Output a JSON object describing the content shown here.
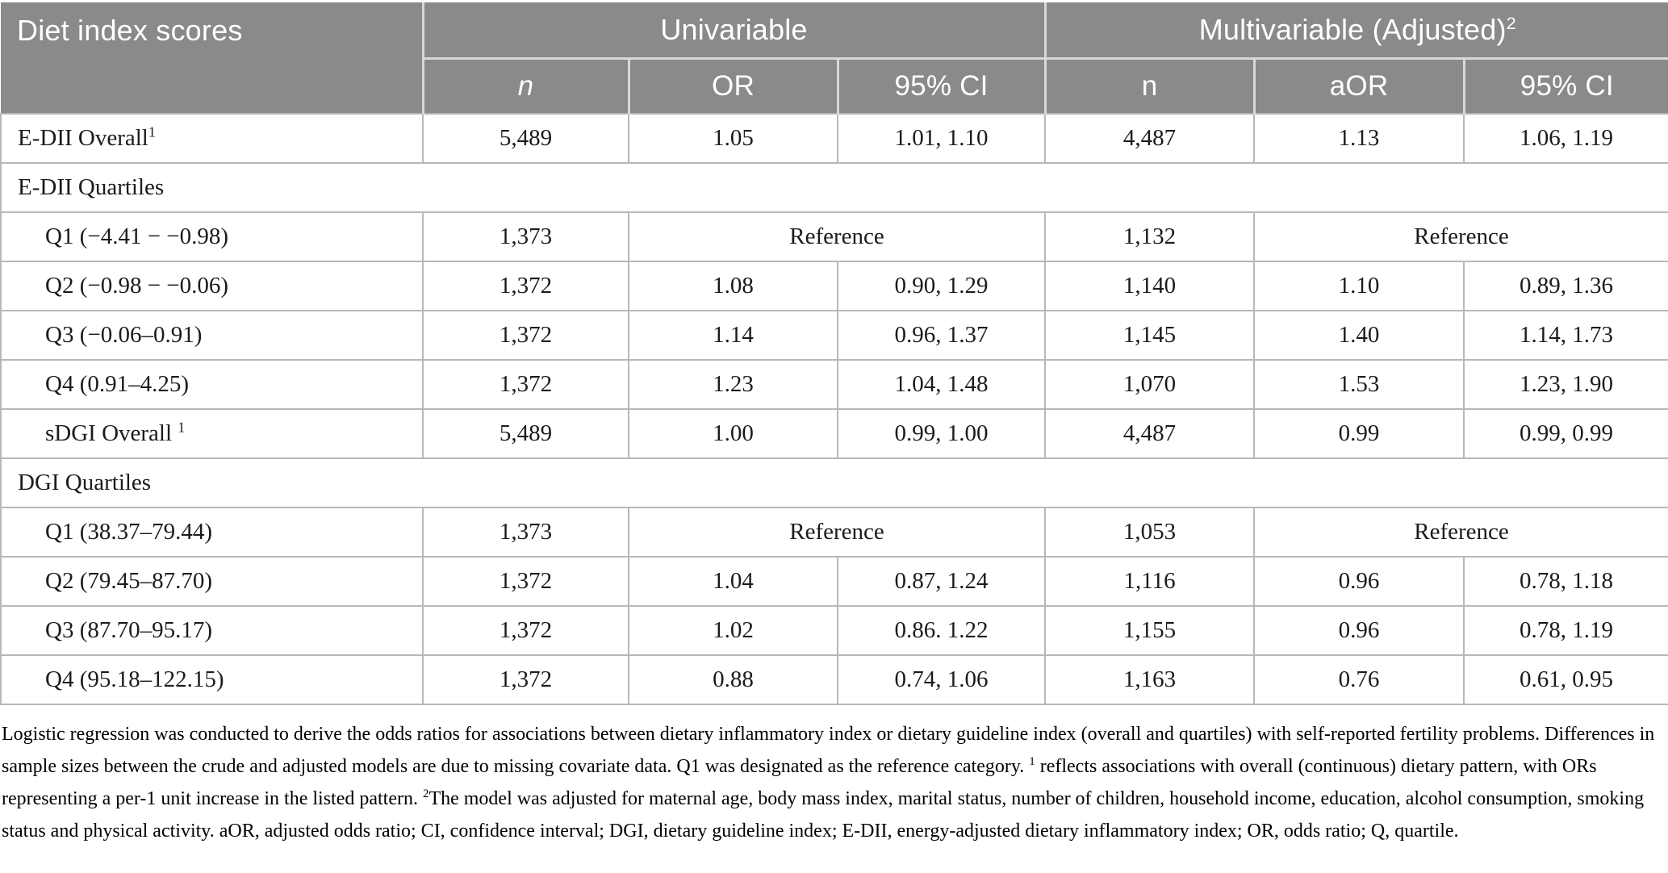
{
  "table": {
    "header": {
      "col1": "Diet index scores",
      "group_univariable": "Univariable",
      "group_multivariable": "Multivariable (Adjusted)",
      "group_multivariable_sup": "2",
      "sub": [
        {
          "label": "n",
          "italic": true
        },
        {
          "label": "OR",
          "italic": false
        },
        {
          "label": "95% CI",
          "italic": false
        },
        {
          "label": "n",
          "italic": false
        },
        {
          "label": "aOR",
          "italic": false
        },
        {
          "label": "95% CI",
          "italic": false
        }
      ]
    },
    "rows": [
      {
        "type": "data",
        "label": "E-DII Overall",
        "label_sup": "1",
        "indent": false,
        "cells": [
          "5,489",
          "1.05",
          "1.01, 1.10",
          "4,487",
          "1.13",
          "1.06, 1.19"
        ]
      },
      {
        "type": "section",
        "label": "E-DII Quartiles"
      },
      {
        "type": "ref",
        "label": "Q1 (−4.41 − −0.98)",
        "indent": true,
        "n_uni": "1,373",
        "ref_uni": "Reference",
        "n_multi": "1,132",
        "ref_multi": "Reference"
      },
      {
        "type": "data",
        "label": "Q2 (−0.98 − −0.06)",
        "indent": true,
        "cells": [
          "1,372",
          "1.08",
          "0.90, 1.29",
          "1,140",
          "1.10",
          "0.89, 1.36"
        ]
      },
      {
        "type": "data",
        "label": "Q3 (−0.06–0.91)",
        "indent": true,
        "cells": [
          "1,372",
          "1.14",
          "0.96, 1.37",
          "1,145",
          "1.40",
          "1.14, 1.73"
        ]
      },
      {
        "type": "data",
        "label": "Q4 (0.91–4.25)",
        "indent": true,
        "cells": [
          "1,372",
          "1.23",
          "1.04, 1.48",
          "1,070",
          "1.53",
          "1.23, 1.90"
        ]
      },
      {
        "type": "data",
        "label": "sDGI Overall ",
        "label_sup": "1",
        "indent": true,
        "cells": [
          "5,489",
          "1.00",
          "0.99, 1.00",
          "4,487",
          "0.99",
          "0.99, 0.99"
        ]
      },
      {
        "type": "section",
        "label": "DGI Quartiles"
      },
      {
        "type": "ref",
        "label": "Q1 (38.37–79.44)",
        "indent": true,
        "n_uni": "1,373",
        "ref_uni": "Reference",
        "n_multi": "1,053",
        "ref_multi": "Reference"
      },
      {
        "type": "data",
        "label": "Q2 (79.45–87.70)",
        "indent": true,
        "cells": [
          "1,372",
          "1.04",
          "0.87, 1.24",
          "1,116",
          "0.96",
          "0.78, 1.18"
        ]
      },
      {
        "type": "data",
        "label": "Q3 (87.70–95.17)",
        "indent": true,
        "cells": [
          "1,372",
          "1.02",
          "0.86. 1.22",
          "1,155",
          "0.96",
          "0.78, 1.19"
        ]
      },
      {
        "type": "data",
        "label": "Q4 (95.18–122.15)",
        "indent": true,
        "cells": [
          "1,372",
          "0.88",
          "0.74, 1.06",
          "1,163",
          "0.76",
          "0.61, 0.95"
        ]
      }
    ]
  },
  "footnote": {
    "segments": [
      {
        "sup": false,
        "text": "Logistic regression was conducted to derive the odds ratios for associations between dietary inflammatory index or dietary guideline index (overall and quartiles) with self-reported fertility problems. Differences in sample sizes between the crude and adjusted models are due to missing covariate data. Q1 was designated as the reference category. "
      },
      {
        "sup": true,
        "text": "1"
      },
      {
        "sup": false,
        "text": " reflects associations with overall (continuous) dietary pattern, with ORs representing a per-1 unit increase in the listed pattern. "
      },
      {
        "sup": true,
        "text": "2"
      },
      {
        "sup": false,
        "text": "The model was adjusted for maternal age, body mass index, marital status, number of children, household income, education, alcohol consumption, smoking status and physical activity. aOR, adjusted odds ratio; CI, confidence interval; DGI, dietary guideline index; E-DII, energy-adjusted dietary inflammatory index; OR, odds ratio; Q, quartile."
      }
    ]
  },
  "colors": {
    "header_bg": "#8a8a8a",
    "header_text": "#ffffff",
    "grid_line": "#b8b8b8",
    "header_separator": "#d8d8d8",
    "body_text": "#1b1b1b"
  }
}
